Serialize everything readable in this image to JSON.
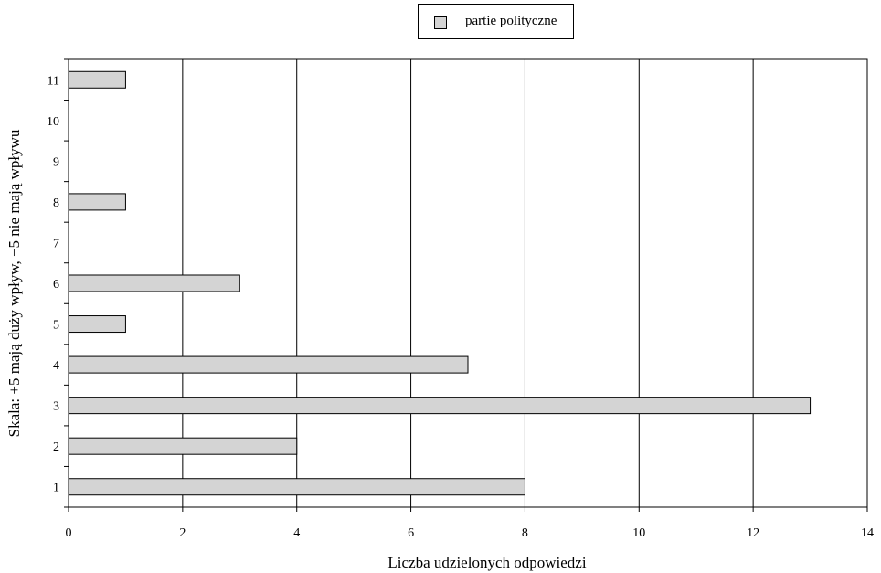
{
  "chart_data": {
    "type": "bar",
    "orientation": "horizontal",
    "categories": [
      "1",
      "2",
      "3",
      "4",
      "5",
      "6",
      "7",
      "8",
      "9",
      "10",
      "11"
    ],
    "series": [
      {
        "name": "partie polityczne",
        "values": [
          8,
          4,
          13,
          7,
          1,
          3,
          0,
          1,
          0,
          0,
          1
        ]
      }
    ],
    "xlabel": "Liczba udzielonych odpowiedzi",
    "ylabel": "Skala: +5 mają duży wpływ, −5 nie mają wpływu",
    "xlim": [
      0,
      14
    ],
    "xticks": [
      "0",
      "2",
      "4",
      "6",
      "8",
      "10",
      "12",
      "14"
    ],
    "grid": "vertical",
    "legend": "top-center",
    "colors": {
      "bar_fill": "#d4d4d4",
      "outline": "#000000",
      "grid": "#000000"
    }
  }
}
